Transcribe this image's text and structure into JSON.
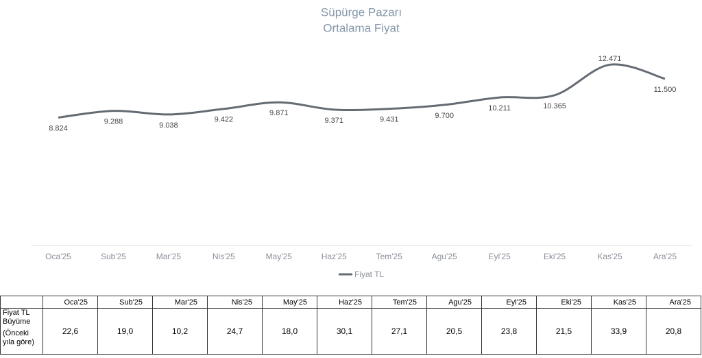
{
  "chart_data": {
    "type": "line",
    "title": "Süpürge Pazarı",
    "subtitle": "Ortalama Fiyat",
    "categories": [
      "Oca'25",
      "Sub'25",
      "Mar'25",
      "Nis'25",
      "May'25",
      "Haz'25",
      "Tem'25",
      "Agu'25",
      "Eyl'25",
      "Eki'25",
      "Kas'25",
      "Ara'25"
    ],
    "series": [
      {
        "name": "Fiyat TL",
        "color": "#646b73",
        "values": [
          8824,
          9288,
          9038,
          9422,
          9871,
          9371,
          9431,
          9700,
          10211,
          10365,
          12471,
          11500
        ],
        "value_labels": [
          "8.824",
          "9.288",
          "9.038",
          "9.422",
          "9.871",
          "9.371",
          "9.431",
          "9.700",
          "10.211",
          "10.365",
          "12.471",
          "11.500"
        ]
      }
    ],
    "ylim": [
      0,
      14000
    ],
    "legend": "bottom"
  },
  "table": {
    "header": [
      "Oca'25",
      "Sub'25",
      "Mar'25",
      "Nis'25",
      "May'25",
      "Haz'25",
      "Tem'25",
      "Agu'25",
      "Eyl'25",
      "Eki'25",
      "Kas'25",
      "Ara'25"
    ],
    "row_label": [
      "Fiyat TL Büyüme",
      "(Önceki yıla göre)"
    ],
    "rows": [
      [
        "22,6",
        "19,0",
        "10,2",
        "24,7",
        "18,0",
        "30,1",
        "27,1",
        "20,5",
        "23,8",
        "21,5",
        "33,9",
        "20,8"
      ]
    ]
  }
}
